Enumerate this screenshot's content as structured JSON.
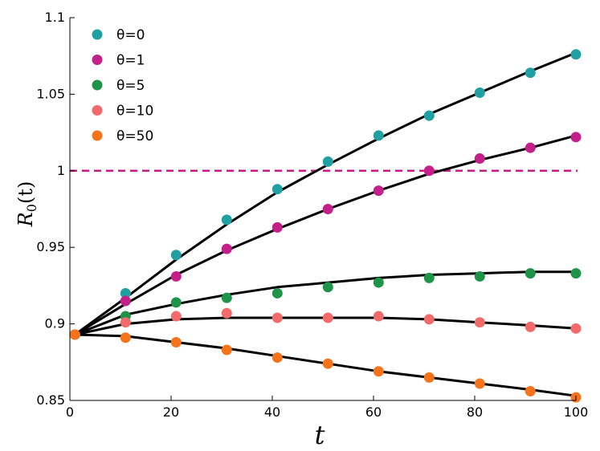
{
  "chart_data": {
    "type": "scatter",
    "xlabel": "t",
    "ylabel_main": "R",
    "ylabel_sub": "0",
    "ylabel_tail": "(t)",
    "xlim": [
      0,
      100
    ],
    "ylim": [
      0.85,
      1.1
    ],
    "x_ticks": [
      0,
      20,
      40,
      60,
      80,
      100
    ],
    "x_tick_labels": [
      "0",
      "20",
      "40",
      "60",
      "80",
      "100"
    ],
    "y_ticks": [
      0.85,
      0.9,
      0.95,
      1.0,
      1.05,
      1.1
    ],
    "y_tick_labels": [
      "0.85",
      "0.9",
      "0.95",
      "1",
      "1.05",
      "1.1"
    ],
    "grid": false,
    "legend_position": "top-left",
    "reference_line": {
      "y": 1.0,
      "style": "dashed",
      "color": "#cc1a84"
    },
    "fit_line_color": "#000000",
    "x": [
      1,
      11,
      21,
      31,
      41,
      51,
      61,
      71,
      81,
      91,
      100
    ],
    "series": [
      {
        "name": "θ=0",
        "color": "#20a0a3",
        "values": [
          0.893,
          0.92,
          0.945,
          0.968,
          0.988,
          1.006,
          1.023,
          1.036,
          1.051,
          1.064,
          1.076
        ],
        "fit": [
          0.893,
          0.917,
          0.942,
          0.965,
          0.986,
          1.004,
          1.021,
          1.037,
          1.051,
          1.065,
          1.077
        ]
      },
      {
        "name": "θ=1",
        "color": "#c4208a",
        "values": [
          0.893,
          0.915,
          0.931,
          0.949,
          0.963,
          0.975,
          0.987,
          1.0,
          1.008,
          1.015,
          1.022
        ],
        "fit": [
          0.893,
          0.913,
          0.932,
          0.948,
          0.962,
          0.975,
          0.987,
          0.998,
          1.007,
          1.015,
          1.023
        ]
      },
      {
        "name": "θ=5",
        "color": "#1e9448",
        "values": [
          0.893,
          0.905,
          0.914,
          0.917,
          0.92,
          0.924,
          0.927,
          0.93,
          0.931,
          0.933,
          0.933
        ],
        "fit": [
          0.893,
          0.906,
          0.913,
          0.919,
          0.924,
          0.927,
          0.93,
          0.932,
          0.933,
          0.934,
          0.934
        ]
      },
      {
        "name": "θ=10",
        "color": "#f26b6b",
        "values": [
          0.893,
          0.901,
          0.905,
          0.907,
          0.904,
          0.904,
          0.905,
          0.903,
          0.901,
          0.898,
          0.897
        ],
        "fit": [
          0.893,
          0.9,
          0.903,
          0.904,
          0.904,
          0.904,
          0.904,
          0.903,
          0.901,
          0.899,
          0.897
        ]
      },
      {
        "name": "θ=50",
        "color": "#f4731b",
        "values": [
          0.893,
          0.891,
          0.888,
          0.883,
          0.878,
          0.874,
          0.869,
          0.865,
          0.861,
          0.856,
          0.852
        ],
        "fit": [
          0.893,
          0.892,
          0.888,
          0.884,
          0.879,
          0.874,
          0.869,
          0.865,
          0.861,
          0.857,
          0.853
        ]
      }
    ]
  }
}
